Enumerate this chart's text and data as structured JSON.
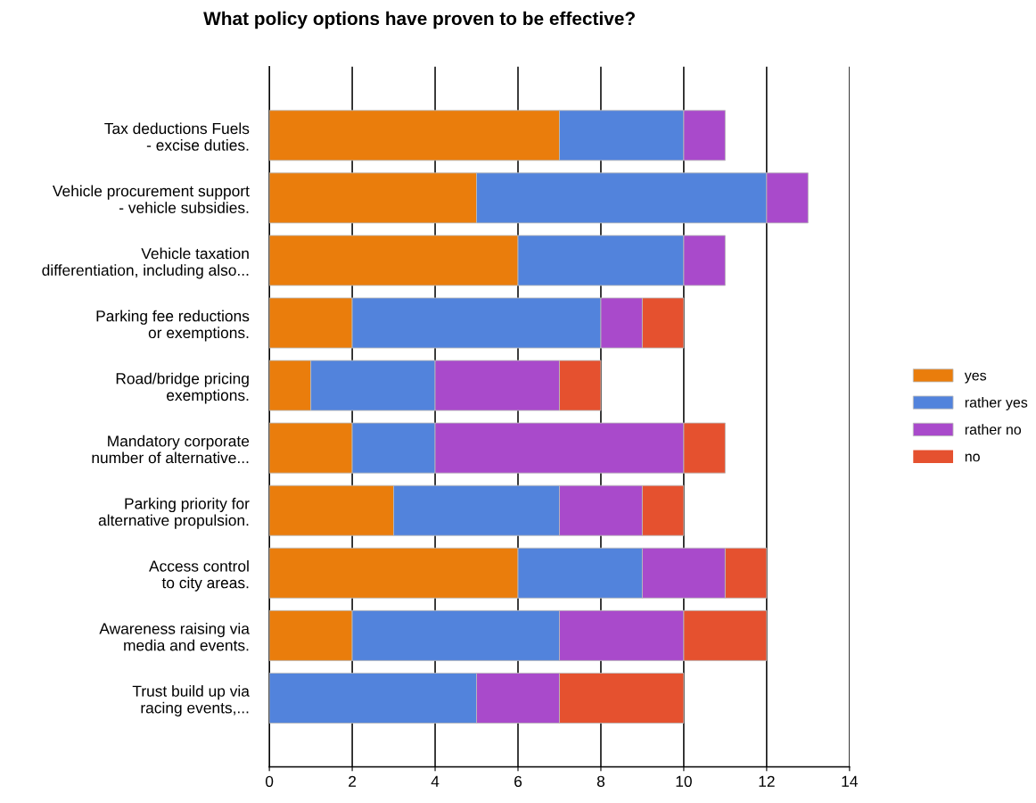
{
  "chart_data": {
    "type": "bar",
    "orientation": "horizontal",
    "stacked": true,
    "title": "What policy options have proven to be effective?",
    "categories": [
      "Tax deductions Fuels\n- excise duties.",
      "Vehicle procurement support\n- vehicle subsidies.",
      "Vehicle taxation\ndifferentiation, including also...",
      "Parking fee reductions\nor exemptions.",
      "Road/bridge pricing\nexemptions.",
      "Mandatory corporate\nnumber of alternative...",
      "Parking priority for\nalternative propulsion.",
      "Access control\nto city areas.",
      "Awareness raising via\nmedia and events.",
      "Trust build up via\nracing events,..."
    ],
    "series": [
      {
        "name": "yes",
        "color": "#ea7d0c",
        "values": [
          7,
          5,
          6,
          2,
          1,
          2,
          3,
          6,
          2,
          0
        ]
      },
      {
        "name": "rather yes",
        "color": "#5283dc",
        "values": [
          3,
          7,
          4,
          6,
          3,
          2,
          4,
          3,
          5,
          5
        ]
      },
      {
        "name": "rather no",
        "color": "#a94acb",
        "values": [
          1,
          1,
          1,
          1,
          3,
          6,
          2,
          2,
          3,
          2
        ]
      },
      {
        "name": "no",
        "color": "#e5512f",
        "values": [
          0,
          0,
          0,
          1,
          1,
          1,
          1,
          1,
          2,
          3
        ]
      }
    ],
    "xlim": [
      0,
      14
    ],
    "xticks": [
      0,
      2,
      4,
      6,
      8,
      10,
      12,
      14
    ],
    "grid": "x",
    "legend": "right"
  }
}
